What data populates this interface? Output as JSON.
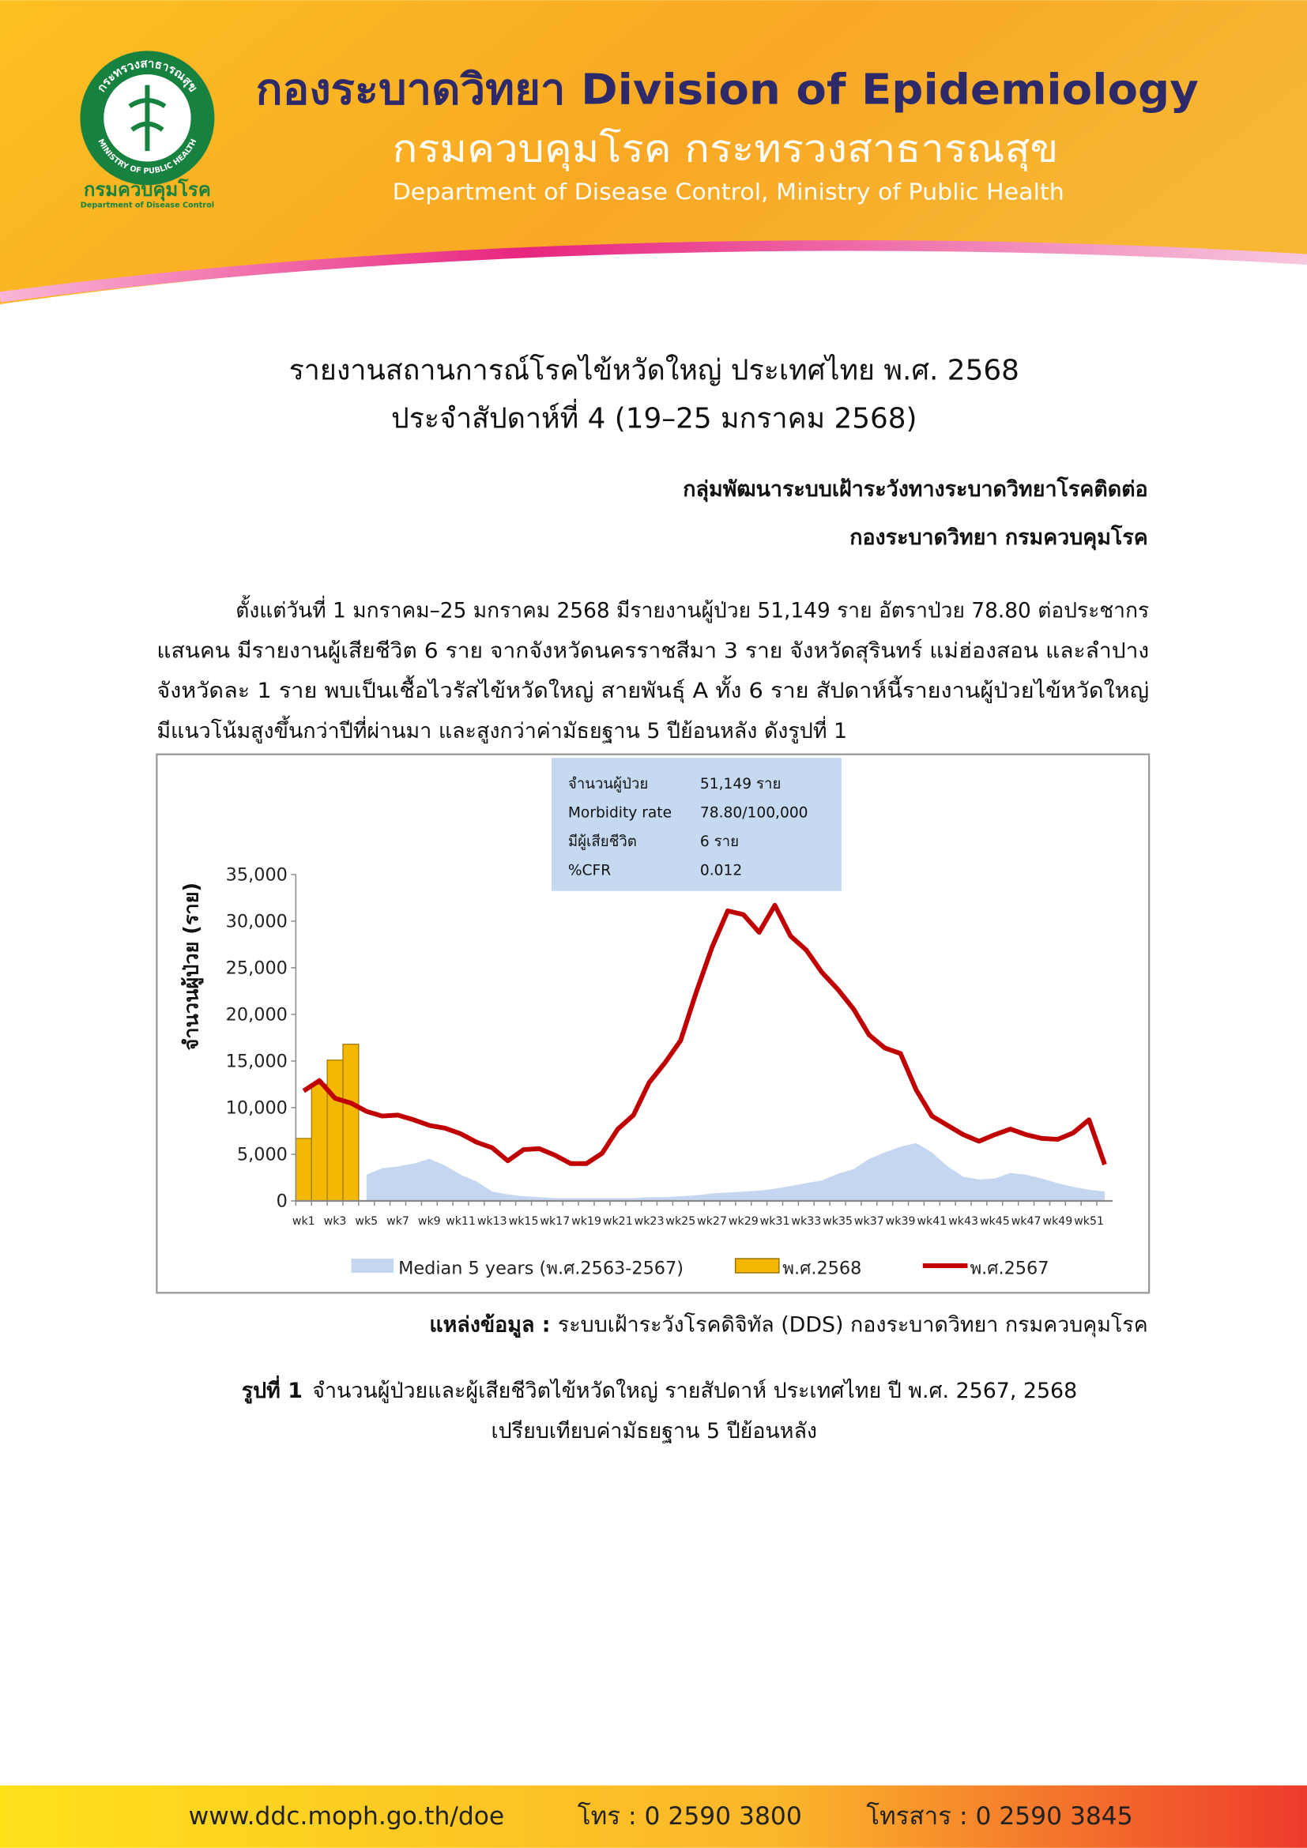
{
  "header": {
    "org": "กองระบาดวิทยา Division of Epidemiology",
    "dept_th": "กรมควบคุมโรค กระทรวงสาธารณสุข",
    "dept_en": "Department of Disease Control, Ministry of Public Health",
    "logo": {
      "ring_top": "กระทรวงสาธารณสุข",
      "ring_bottom": "MINISTRY OF PUBLIC HEALTH",
      "name_th": "กรมควบคุมโรค",
      "name_en": "Department of Disease Control"
    }
  },
  "report": {
    "title": [
      "รายงานสถานการณ์โรคไข้หวัดใหญ่ ประเทศไทย พ.ศ. 2568",
      "ประจำสัปดาห์ที่ 4 (19–25 มกราคม 2568)"
    ],
    "author": [
      "กลุ่มพัฒนาระบบเฝ้าระวังทางระบาดวิทยาโรคติดต่อ",
      "กองระบาดวิทยา กรมควบคุมโรค"
    ],
    "paragraph": [
      "ตั้งแต่วันที่ 1 มกราคม–25 มกราคม 2568 มีรายงานผู้ป่วย 51,149 ราย อัตราป่วย 78.80 ต่อประชากร",
      "แสนคน มีรายงานผู้เสียชีวิต 6 ราย จากจังหวัดนครราชสีมา 3 ราย จังหวัดสุรินทร์ แม่ฮ่องสอน และลำปาง",
      "จังหวัดละ 1 ราย พบเป็นเชื้อไวรัสไข้หวัดใหญ่ สายพันธุ์ A ทั้ง 6 ราย สัปดาห์นี้รายงานผู้ป่วยไข้หวัดใหญ่",
      "มีแนวโน้มสูงขึ้นกว่าปีที่ผ่านมา และสูงกว่าค่ามัธยฐาน 5 ปีย้อนหลัง ดังรูปที่ 1"
    ],
    "source_label": "แหล่งข้อมูล :",
    "source": "ระบบเฝ้าระวังโรคดิจิทัล (DDS) กองระบาดวิทยา กรมควบคุมโรค",
    "caption_label": "รูปที่ 1",
    "caption": [
      "จำนวนผู้ป่วยและผู้เสียชีวิตไข้หวัดใหญ่ รายสัปดาห์ ประเทศไทย ปี พ.ศ. 2567, 2568",
      "เปรียบเทียบค่ามัธยฐาน 5 ปีย้อนหลัง"
    ]
  },
  "chart_data": {
    "type": "combo",
    "y_label": "จำนวนผู้ป่วย (ราย)",
    "info_box": {
      "rows": [
        [
          "จำนวนผู้ป่วย",
          "51,149 ราย"
        ],
        [
          "Morbidity rate",
          "78.80/100,000"
        ],
        [
          "มีผู้เสียชีวิต",
          "6 ราย"
        ],
        [
          "%CFR",
          "0.012"
        ]
      ]
    },
    "categories": [
      "wk1",
      null,
      "wk3",
      null,
      "wk5",
      null,
      "wk7",
      null,
      "wk9",
      null,
      "wk11",
      null,
      "wk13",
      null,
      "wk15",
      null,
      "wk17",
      null,
      "wk19",
      null,
      "wk21",
      null,
      "wk23",
      null,
      "wk25",
      null,
      "wk27",
      null,
      "wk29",
      null,
      "wk31",
      null,
      "wk33",
      null,
      "wk35",
      null,
      "wk37",
      null,
      "wk39",
      null,
      "wk41",
      null,
      "wk43",
      null,
      "wk45",
      null,
      "wk47",
      null,
      "wk49",
      null,
      "wk51",
      null
    ],
    "ylim": [
      0,
      35000
    ],
    "yticks": [
      0,
      {
        "value": 5000,
        "label": "5,000"
      },
      {
        "value": 10000,
        "label": "10,000"
      },
      {
        "value": 15000,
        "label": "15,000"
      },
      {
        "value": 20000,
        "label": "20,000"
      },
      {
        "value": 25000,
        "label": "25,000"
      },
      {
        "value": 30000,
        "label": "30,000"
      },
      {
        "value": 35000,
        "label": "35,000"
      }
    ],
    "series": [
      {
        "name": "Median 5 years (พ.ศ.2563-2567)",
        "type": "area",
        "color": "#c5d6f0",
        "values": [
          null,
          null,
          null,
          null,
          2800,
          3500,
          3700,
          4000,
          4500,
          3800,
          2800,
          2100,
          1000,
          700,
          500,
          400,
          300,
          300,
          300,
          300,
          300,
          300,
          400,
          400,
          500,
          600,
          800,
          900,
          1000,
          1100,
          1300,
          1600,
          1900,
          2200,
          2900,
          3400,
          4500,
          5200,
          5800,
          6200,
          5200,
          3700,
          2600,
          2300,
          2400,
          3000,
          2800,
          2400,
          1900,
          1500,
          1200,
          1000
        ]
      },
      {
        "name": "พ.ศ.2568",
        "type": "bar",
        "color": "#f5b800",
        "values": [
          6700,
          12500,
          15100,
          16800,
          null,
          null,
          null,
          null,
          null,
          null,
          null,
          null,
          null,
          null,
          null,
          null,
          null,
          null,
          null,
          null,
          null,
          null,
          null,
          null,
          null,
          null,
          null,
          null,
          null,
          null,
          null,
          null,
          null,
          null,
          null,
          null,
          null,
          null,
          null,
          null,
          null,
          null,
          null,
          null,
          null,
          null,
          null,
          null,
          null,
          null,
          null,
          null
        ]
      },
      {
        "name": "พ.ศ.2567",
        "type": "line",
        "color": "#c00000",
        "values": [
          11800,
          12900,
          11000,
          10500,
          9600,
          9100,
          9200,
          8700,
          8100,
          7800,
          7200,
          6300,
          5700,
          4300,
          5500,
          5600,
          4900,
          4000,
          4000,
          5100,
          7700,
          9200,
          12700,
          14800,
          17200,
          22400,
          27200,
          31100,
          30700,
          28800,
          31700,
          28400,
          26900,
          24500,
          22700,
          20600,
          17800,
          16400,
          15800,
          11900,
          9100,
          8100,
          7100,
          6400,
          7100,
          7700,
          7100,
          6700,
          6600,
          7300,
          8700,
          3900
        ]
      }
    ]
  },
  "footer": {
    "website": "www.ddc.moph.go.th/doe",
    "phone": "โทร : 0 2590 3800",
    "fax": "โทรสาร : 0 2590 3845"
  }
}
